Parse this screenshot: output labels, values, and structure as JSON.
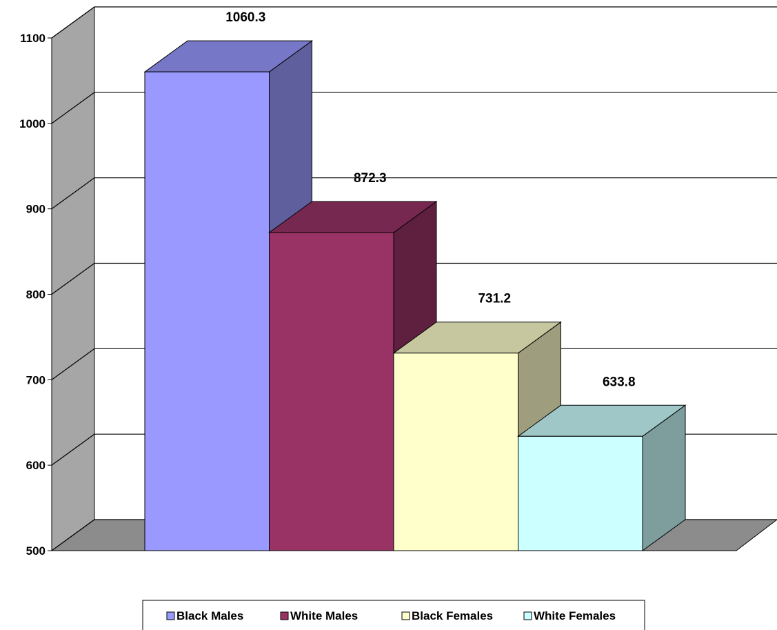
{
  "chart_data": {
    "type": "bar",
    "title": "",
    "xlabel": "",
    "ylabel": "",
    "ylim": [
      500,
      1100
    ],
    "yticks": [
      500,
      600,
      700,
      800,
      900,
      1000,
      1100
    ],
    "grid": true,
    "three_d": true,
    "legend_position": "bottom",
    "series": [
      {
        "name": "Black Males",
        "value": 1060.3,
        "label": "1060.3",
        "color": "#9999ff"
      },
      {
        "name": "White Males",
        "value": 872.3,
        "label": "872.3",
        "color": "#993366"
      },
      {
        "name": "Black Females",
        "value": 731.2,
        "label": "731.2",
        "color": "#ffffcc"
      },
      {
        "name": "White Females",
        "value": 633.8,
        "label": "633.8",
        "color": "#ccffff"
      }
    ]
  }
}
